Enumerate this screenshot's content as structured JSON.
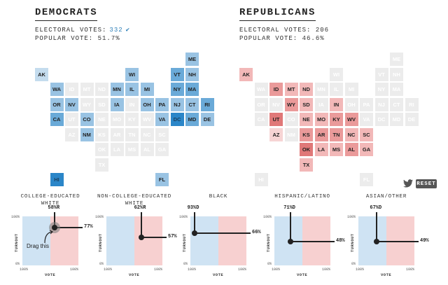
{
  "democrats": {
    "title": "DEMOCRATS",
    "electoral_label": "ELECTORAL VOTES:",
    "electoral_votes": "332",
    "popular_label": "POPULAR VOTE:",
    "popular_vote": "51.7%"
  },
  "republicans": {
    "title": "REPUBLICANS",
    "electoral_label": "ELECTORAL VOTES:",
    "electoral_votes": "206",
    "popular_label": "POPULAR VOTE:",
    "popular_vote": "46.6%"
  },
  "colors": {
    "empty": "#ececec",
    "dem": [
      "#c4dcee",
      "#99c3e3",
      "#6aaad8",
      "#2b86c8"
    ],
    "rep": [
      "#f6d4d4",
      "#f2b8b8",
      "#ea9a9a",
      "#e07878"
    ]
  },
  "dem_map": [
    {
      "s": "ME",
      "lv": 1
    },
    {
      "s": "WI",
      "lv": 1
    },
    {
      "s": "VT",
      "lv": 2
    },
    {
      "s": "NH",
      "lv": 1
    },
    {
      "s": "WA",
      "lv": 1
    },
    {
      "s": "MN",
      "lv": 1
    },
    {
      "s": "IL",
      "lv": 1
    },
    {
      "s": "MI",
      "lv": 1
    },
    {
      "s": "NY",
      "lv": 2
    },
    {
      "s": "MA",
      "lv": 2
    },
    {
      "s": "OR",
      "lv": 1
    },
    {
      "s": "NV",
      "lv": 1
    },
    {
      "s": "IA",
      "lv": 1
    },
    {
      "s": "OH",
      "lv": 1
    },
    {
      "s": "PA",
      "lv": 1
    },
    {
      "s": "NJ",
      "lv": 1
    },
    {
      "s": "CT",
      "lv": 1
    },
    {
      "s": "RI",
      "lv": 2
    },
    {
      "s": "CA",
      "lv": 2
    },
    {
      "s": "CO",
      "lv": 1
    },
    {
      "s": "VA",
      "lv": 1
    },
    {
      "s": "DC",
      "lv": 3
    },
    {
      "s": "MD",
      "lv": 2
    },
    {
      "s": "DE",
      "lv": 1
    },
    {
      "s": "NM",
      "lv": 1
    },
    {
      "s": "HI",
      "lv": 3
    },
    {
      "s": "FL",
      "lv": 1
    },
    {
      "s": "AK",
      "lv": 0
    }
  ],
  "rep_map": [
    {
      "s": "AK",
      "lv": 1
    },
    {
      "s": "ID",
      "lv": 2
    },
    {
      "s": "MT",
      "lv": 1
    },
    {
      "s": "ND",
      "lv": 1
    },
    {
      "s": "WY",
      "lv": 2
    },
    {
      "s": "SD",
      "lv": 1
    },
    {
      "s": "IN",
      "lv": 1
    },
    {
      "s": "UT",
      "lv": 3
    },
    {
      "s": "NE",
      "lv": 1
    },
    {
      "s": "MO",
      "lv": 1
    },
    {
      "s": "KY",
      "lv": 2
    },
    {
      "s": "WV",
      "lv": 2
    },
    {
      "s": "AZ",
      "lv": 0
    },
    {
      "s": "KS",
      "lv": 2
    },
    {
      "s": "AR",
      "lv": 2
    },
    {
      "s": "TN",
      "lv": 2
    },
    {
      "s": "NC",
      "lv": 1
    },
    {
      "s": "SC",
      "lv": 1
    },
    {
      "s": "OK",
      "lv": 3
    },
    {
      "s": "LA",
      "lv": 1
    },
    {
      "s": "MS",
      "lv": 1
    },
    {
      "s": "AL",
      "lv": 2
    },
    {
      "s": "GA",
      "lv": 1
    },
    {
      "s": "TX",
      "lv": 1
    }
  ],
  "toolbar": {
    "reset_label": "RESET"
  },
  "panels": [
    {
      "title": "COLLEGE-EDUCATED\nWHITE",
      "vote_label": "58%R",
      "turnout_label": "77%",
      "vote": 0.58,
      "turnout": 0.77,
      "hint": "Drag this"
    },
    {
      "title": "NON-COLLEGE-EDUCATED\nWHITE",
      "vote_label": "62%R",
      "turnout_label": "57%",
      "vote": 0.62,
      "turnout": 0.57,
      "hint": ""
    },
    {
      "title": "BLACK",
      "vote_label": "93%D",
      "turnout_label": "66%",
      "vote": 0.93,
      "turnout": 0.66,
      "hint": ""
    },
    {
      "title": "HISPANIC/LATINO",
      "vote_label": "71%D",
      "turnout_label": "48%",
      "vote": 0.71,
      "turnout": 0.48,
      "hint": ""
    },
    {
      "title": "ASIAN/OTHER",
      "vote_label": "67%D",
      "turnout_label": "49%",
      "vote": 0.67,
      "turnout": 0.49,
      "hint": ""
    }
  ],
  "axis": {
    "turnout": "TURNOUT",
    "vote": "VOTE",
    "pct": "100%",
    "zero": "0%"
  }
}
